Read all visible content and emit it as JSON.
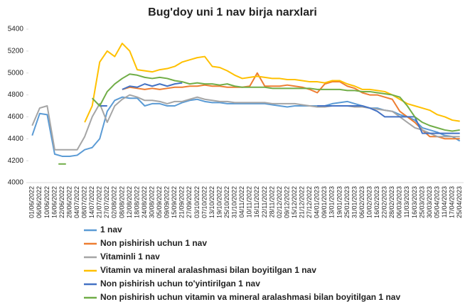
{
  "chart_data": {
    "type": "line",
    "title": "Bug'doy uni 1 nav birja narxlari",
    "categories": [
      "01/06/2022",
      "06/06/2022",
      "10/06/2022",
      "16/06/2022",
      "22/06/2022",
      "28/06/2022",
      "04/07/2022",
      "08/07/2022",
      "14/07/2022",
      "21/07/2022",
      "27/07/2022",
      "02/08/2022",
      "08/08/2022",
      "12/08/2022",
      "18/08/2022",
      "24/08/2022",
      "30/08/2022",
      "05/09/2022",
      "09/09/2022",
      "15/09/2022",
      "21/09/2022",
      "27/09/2022",
      "03/10/2022",
      "07/10/2022",
      "13/10/2022",
      "19/10/2022",
      "25/10/2022",
      "31/10/2022",
      "04/11/2022",
      "10/11/2022",
      "16/11/2022",
      "22/11/2022",
      "28/11/2022",
      "02/12/2022",
      "09/12/2022",
      "15/12/2022",
      "21/12/2022",
      "27/12/2022",
      "04/01/2023",
      "09/01/2023",
      "13/01/2023",
      "19/01/2023",
      "25/01/2023",
      "31/01/2023",
      "06/02/2023",
      "10/02/2023",
      "16/02/2023",
      "22/02/2023",
      "28/02/2023",
      "06/03/2023",
      "11/03/2023",
      "16/03/2023",
      "25/03/2023",
      "30/03/2023",
      "05/04/2023",
      "11/04/2023",
      "17/04/2023",
      "25/04/2023"
    ],
    "series": [
      {
        "name": "1 nav",
        "color": "#5b9bd5",
        "values": [
          4430,
          4630,
          4620,
          4260,
          4240,
          4240,
          4250,
          4300,
          4320,
          4400,
          4650,
          4750,
          4780,
          4770,
          4770,
          4700,
          4720,
          4720,
          4700,
          4700,
          4730,
          4750,
          4760,
          4740,
          4730,
          4730,
          4720,
          4720,
          4720,
          4720,
          4720,
          4720,
          4710,
          4700,
          4690,
          4700,
          4700,
          4700,
          4700,
          4700,
          4720,
          4730,
          4740,
          4720,
          4700,
          4680,
          4680,
          4660,
          4650,
          4620,
          4600,
          4570,
          4500,
          4480,
          4460,
          4430,
          4420,
          4380
        ]
      },
      {
        "name": "Non pishirish uchun 1 nav",
        "color": "#ed7d31",
        "values": [
          null,
          null,
          null,
          null,
          null,
          null,
          null,
          null,
          null,
          null,
          null,
          null,
          4850,
          4870,
          4860,
          4850,
          4860,
          4850,
          4860,
          4870,
          4870,
          4880,
          4880,
          4890,
          4880,
          4880,
          4870,
          4870,
          4870,
          4880,
          5000,
          4880,
          4880,
          4880,
          4890,
          4880,
          4870,
          4850,
          4820,
          4900,
          4920,
          4920,
          4880,
          4860,
          4820,
          4800,
          4800,
          4780,
          4760,
          4650,
          4600,
          4550,
          4480,
          4420,
          4420,
          4400,
          4400,
          4400
        ]
      },
      {
        "name": "Vitaminli 1 nav",
        "color": "#a5a5a5",
        "values": [
          4520,
          4680,
          4700,
          4300,
          4300,
          4300,
          4300,
          4420,
          4600,
          4720,
          4550,
          4700,
          4760,
          4800,
          4780,
          4750,
          4750,
          4740,
          4720,
          4740,
          4740,
          4760,
          4780,
          4760,
          4750,
          4740,
          4740,
          4730,
          4730,
          4730,
          4730,
          4730,
          4720,
          4720,
          4720,
          4720,
          4710,
          4700,
          4690,
          4690,
          4700,
          4700,
          4700,
          4690,
          4690,
          4680,
          4670,
          4660,
          4650,
          4600,
          4550,
          4500,
          4480,
          4450,
          4420,
          4420,
          4420,
          4420
        ]
      },
      {
        "name": "Vitamin va mineral aralashmasi bilan boyitilgan 1 nav",
        "color": "#ffc000",
        "values": [
          null,
          null,
          null,
          null,
          null,
          null,
          null,
          4550,
          4700,
          5100,
          5200,
          5150,
          5270,
          5200,
          5030,
          5020,
          5010,
          5030,
          5040,
          5060,
          5100,
          5120,
          5140,
          5150,
          5060,
          5050,
          5020,
          4980,
          4950,
          4960,
          4970,
          4960,
          4950,
          4950,
          4940,
          4940,
          4930,
          4920,
          4920,
          4910,
          4930,
          4930,
          4900,
          4880,
          4850,
          4850,
          4840,
          4830,
          4800,
          4760,
          4720,
          4700,
          4680,
          4660,
          4620,
          4600,
          4570,
          4560
        ]
      },
      {
        "name": "Non pishirish uchun to'yintirilgan 1 nav",
        "color": "#4472c4",
        "values": [
          null,
          null,
          null,
          null,
          null,
          null,
          null,
          null,
          null,
          4700,
          4700,
          null,
          4850,
          4880,
          4870,
          4900,
          4880,
          4900,
          4880,
          4900,
          4910,
          null,
          null,
          null,
          null,
          null,
          null,
          null,
          null,
          null,
          null,
          null,
          null,
          null,
          null,
          null,
          null,
          null,
          4700,
          4700,
          4700,
          4700,
          4700,
          4700,
          4700,
          4680,
          4650,
          4600,
          4600,
          4600,
          4600,
          4600,
          4450,
          4450,
          4450,
          4450,
          4450,
          4450
        ]
      },
      {
        "name": "Non pishirish uchun vitamin va mineral aralashmasi bilan boyitilgan 1 nav",
        "color": "#70ad47",
        "values": [
          null,
          null,
          null,
          null,
          4170,
          null,
          null,
          null,
          4770,
          4700,
          4830,
          4900,
          4950,
          4990,
          4980,
          4960,
          4950,
          4960,
          4950,
          4930,
          4920,
          4900,
          4910,
          4900,
          4900,
          4890,
          4900,
          4880,
          4870,
          4870,
          4870,
          4870,
          4860,
          4860,
          4860,
          4860,
          4860,
          4860,
          4850,
          4850,
          4850,
          4850,
          4840,
          4840,
          4830,
          4830,
          4820,
          4810,
          4800,
          4780,
          4700,
          4600,
          4550,
          4520,
          4500,
          4480,
          4470,
          4480
        ]
      }
    ],
    "ylim": [
      4000,
      5400
    ],
    "yticks": [
      4000,
      4200,
      4400,
      4600,
      4800,
      5000,
      5200,
      5400
    ]
  }
}
